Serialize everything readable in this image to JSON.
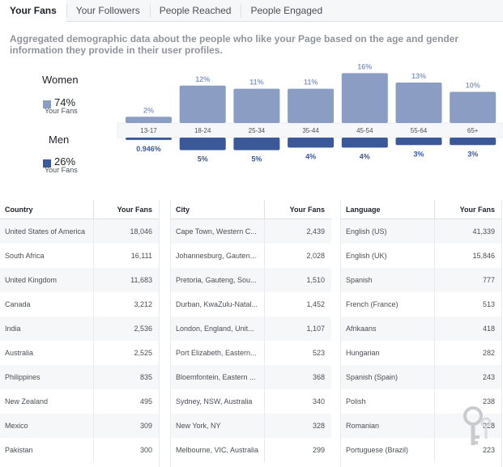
{
  "tabs": [
    "Your Fans",
    "Your Followers",
    "People Reached",
    "People Engaged"
  ],
  "description": "Aggregated demographic data about the people who like your Page based on the age and gender information they provide in their user profiles.",
  "gender": {
    "women": {
      "label": "Women",
      "pct": "74%",
      "sub": "Your Fans"
    },
    "men": {
      "label": "Men",
      "pct": "26%",
      "sub": "Your Fans"
    }
  },
  "colors": {
    "women": "#8b9dc3",
    "men": "#3b5998"
  },
  "chart_data": {
    "type": "bar",
    "categories": [
      "13-17",
      "18-24",
      "25-34",
      "35-44",
      "45-54",
      "55-64",
      "65+"
    ],
    "series": [
      {
        "name": "Women",
        "values": [
          2,
          12,
          11,
          11,
          16,
          13,
          10
        ],
        "labels": [
          "2%",
          "12%",
          "11%",
          "11%",
          "16%",
          "13%",
          "10%"
        ]
      },
      {
        "name": "Men",
        "values": [
          0.946,
          5,
          5,
          4,
          4,
          3,
          3
        ],
        "labels": [
          "0.946%",
          "5%",
          "5%",
          "4%",
          "4%",
          "3%",
          "3%"
        ]
      }
    ]
  },
  "tables": {
    "country": {
      "headers": [
        "Country",
        "Your Fans"
      ],
      "rows": [
        [
          "United States of America",
          "18,046"
        ],
        [
          "South Africa",
          "16,111"
        ],
        [
          "United Kingdom",
          "11,683"
        ],
        [
          "Canada",
          "3,212"
        ],
        [
          "India",
          "2,536"
        ],
        [
          "Australia",
          "2,525"
        ],
        [
          "Philippines",
          "835"
        ],
        [
          "New Zealand",
          "495"
        ],
        [
          "Mexico",
          "309"
        ],
        [
          "Pakistan",
          "300"
        ]
      ]
    },
    "city": {
      "headers": [
        "City",
        "Your Fans"
      ],
      "rows": [
        [
          "Cape Town, Western C...",
          "2,439"
        ],
        [
          "Johannesburg, Gauten...",
          "2,028"
        ],
        [
          "Pretoria, Gauteng, Sou...",
          "1,510"
        ],
        [
          "Durban, KwaZulu-Natal...",
          "1,452"
        ],
        [
          "London, England, Unit...",
          "1,107"
        ],
        [
          "Port Elizabeth, Eastern...",
          "523"
        ],
        [
          "Bloemfontein, Eastern ...",
          "368"
        ],
        [
          "Sydney, NSW, Australia",
          "340"
        ],
        [
          "New York, NY",
          "328"
        ],
        [
          "Melbourne, VIC, Australia",
          "299"
        ]
      ]
    },
    "language": {
      "headers": [
        "Language",
        "Your Fans"
      ],
      "rows": [
        [
          "English (US)",
          "41,339"
        ],
        [
          "English (UK)",
          "15,846"
        ],
        [
          "Spanish",
          "777"
        ],
        [
          "French (France)",
          "513"
        ],
        [
          "Afrikaans",
          "418"
        ],
        [
          "Hungarian",
          "282"
        ],
        [
          "Spanish (Spain)",
          "243"
        ],
        [
          "Polish",
          "238"
        ],
        [
          "Romanian",
          "228"
        ],
        [
          "Portuguese (Brazil)",
          "223"
        ]
      ]
    }
  }
}
